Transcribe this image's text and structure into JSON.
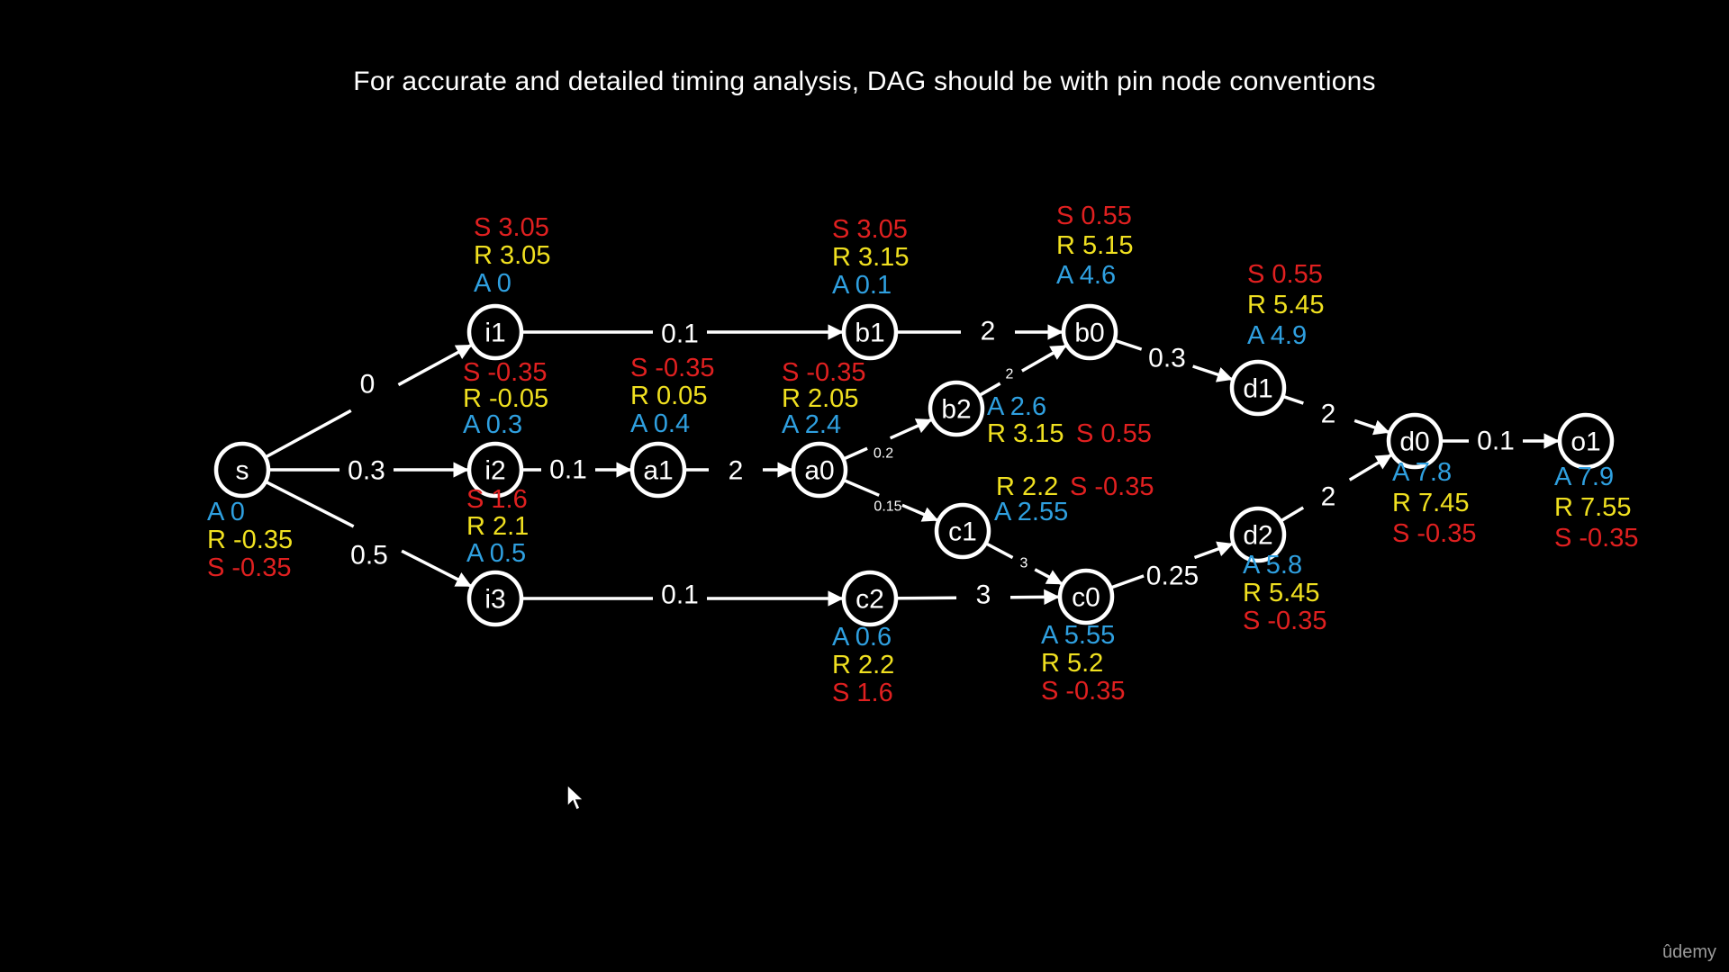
{
  "title": "For accurate  and detailed timing analysis, DAG should be with pin node conventions",
  "colors": {
    "A": "#2fa0e0",
    "R": "#f0e020",
    "S": "#e02020",
    "stroke": "#ffffff",
    "background": "#000000"
  },
  "nodes": [
    {
      "id": "s",
      "label": "s",
      "A": "A 0",
      "R": "R -0.35",
      "S": "S -0.35"
    },
    {
      "id": "i1",
      "label": "i1",
      "A": "A 0",
      "R": "R 3.05",
      "S": "S 3.05"
    },
    {
      "id": "i2",
      "label": "i2",
      "A": "A 0.3",
      "R": "R -0.05",
      "S": "S -0.35"
    },
    {
      "id": "i3",
      "label": "i3",
      "A": "A 0.5",
      "R": "R 2.1",
      "S": "S 1.6"
    },
    {
      "id": "a1",
      "label": "a1",
      "A": "A 0.4",
      "R": "R 0.05",
      "S": "S -0.35"
    },
    {
      "id": "a0",
      "label": "a0",
      "A": "A 2.4",
      "R": "R 2.05",
      "S": "S -0.35"
    },
    {
      "id": "b1",
      "label": "b1",
      "A": "A 0.1",
      "R": "R 3.15",
      "S": "S 3.05"
    },
    {
      "id": "b2",
      "label": "b2",
      "A": "A 2.6",
      "R": "R 3.15",
      "S": "S 0.55"
    },
    {
      "id": "b0",
      "label": "b0",
      "A": "A 4.6",
      "R": "R 5.15",
      "S": "S 0.55"
    },
    {
      "id": "c1",
      "label": "c1",
      "A": "A 2.55",
      "R": "R 2.2",
      "S": "S -0.35"
    },
    {
      "id": "c2",
      "label": "c2",
      "A": "A 0.6",
      "R": "R 2.2",
      "S": "S 1.6"
    },
    {
      "id": "c0",
      "label": "c0",
      "A": "A 5.55",
      "R": "R 5.2",
      "S": "S -0.35"
    },
    {
      "id": "d1",
      "label": "d1",
      "A": "A 4.9",
      "R": "R 5.45",
      "S": "S 0.55"
    },
    {
      "id": "d2",
      "label": "d2",
      "A": "A 5.8",
      "R": "R 5.45",
      "S": "S -0.35"
    },
    {
      "id": "d0",
      "label": "d0",
      "A": "A 7.8",
      "R": "R 7.45",
      "S": "S -0.35"
    },
    {
      "id": "o1",
      "label": "o1",
      "A": "A 7.9",
      "R": "R 7.55",
      "S": "S -0.35"
    }
  ],
  "edges": [
    {
      "from": "s",
      "to": "i1",
      "weight": "0"
    },
    {
      "from": "s",
      "to": "i2",
      "weight": "0.3"
    },
    {
      "from": "s",
      "to": "i3",
      "weight": "0.5"
    },
    {
      "from": "i1",
      "to": "b1",
      "weight": "0.1"
    },
    {
      "from": "i2",
      "to": "a1",
      "weight": "0.1"
    },
    {
      "from": "a1",
      "to": "a0",
      "weight": "2"
    },
    {
      "from": "a0",
      "to": "b2",
      "weight": "0.2"
    },
    {
      "from": "a0",
      "to": "c1",
      "weight": "0.15"
    },
    {
      "from": "b1",
      "to": "b0",
      "weight": "2"
    },
    {
      "from": "b2",
      "to": "b0",
      "weight": "2"
    },
    {
      "from": "i3",
      "to": "c2",
      "weight": "0.1"
    },
    {
      "from": "c2",
      "to": "c0",
      "weight": "3"
    },
    {
      "from": "c1",
      "to": "c0",
      "weight": "3"
    },
    {
      "from": "b0",
      "to": "d1",
      "weight": "0.3"
    },
    {
      "from": "c0",
      "to": "d2",
      "weight": "0.25"
    },
    {
      "from": "d1",
      "to": "d0",
      "weight": "2"
    },
    {
      "from": "d2",
      "to": "d0",
      "weight": "2"
    },
    {
      "from": "d0",
      "to": "o1",
      "weight": "0.1"
    }
  ],
  "watermark": "ûdemy"
}
